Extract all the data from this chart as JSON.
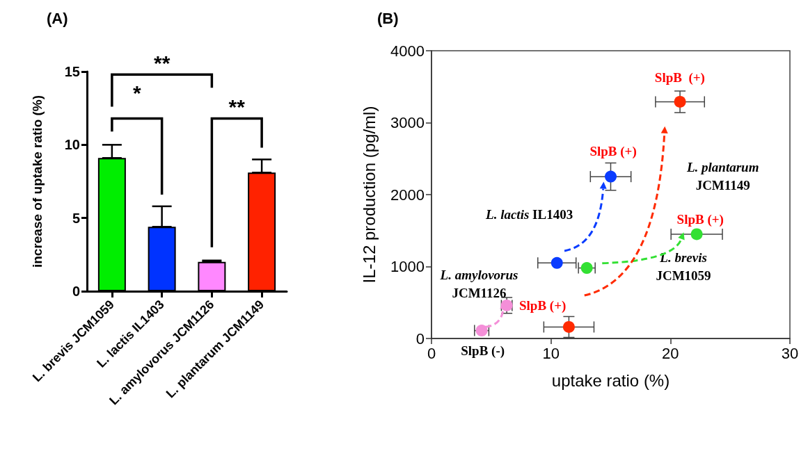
{
  "chart_data": [
    {
      "type": "bar",
      "title": "(A)",
      "ylabel": "increase of uptake ratio (%)",
      "categories": [
        "L. brevis JCM1059",
        "L. lactis IL1403",
        "L. amylovorus JCM1126",
        "L. plantarum JCM1149"
      ],
      "values": [
        9.1,
        4.4,
        2.0,
        8.1
      ],
      "colors": [
        "#00ee00",
        "#0033ff",
        "#ff88ff",
        "#ff2200"
      ],
      "errors": [
        [
          9.1,
          10.0
        ],
        [
          4.4,
          5.8
        ],
        [
          2.0,
          2.1
        ],
        [
          8.1,
          9.0
        ]
      ],
      "ylim": [
        0,
        15
      ],
      "yticks": [
        0,
        5,
        10,
        15
      ],
      "annotations": [
        "**",
        "*",
        "**"
      ]
    },
    {
      "type": "scatter",
      "title": "(B)",
      "xlabel": "uptake ratio (%)",
      "ylabel": "IL-12 production (pg/ml)",
      "marker": "circle",
      "series": [
        {
          "color": "#f48fd8",
          "x": [
            4.2,
            6.3
          ],
          "values": [
            110,
            460
          ],
          "xerrors": [
            0.6,
            0.45
          ],
          "errors": [
            null,
            110
          ]
        },
        {
          "color": "#0a3cff",
          "x": [
            10.5,
            15.0
          ],
          "values": [
            1050,
            2250
          ],
          "xerrors": [
            1.6,
            1.7
          ],
          "errors": [
            null,
            190
          ]
        },
        {
          "color": "#33e033",
          "x": [
            13.0,
            22.2
          ],
          "values": [
            980,
            1450
          ],
          "xerrors": [
            0.7,
            2.15
          ],
          "errors": [
            null,
            null
          ]
        },
        {
          "color": "#ff2a00",
          "x": [
            11.5,
            20.8
          ],
          "values": [
            160,
            3290
          ],
          "xerrors": [
            2.1,
            2.05
          ],
          "errors": [
            145,
            150
          ]
        }
      ],
      "xlim": [
        0,
        30
      ],
      "xticks": [
        0,
        10,
        20,
        30
      ],
      "ylim": [
        0,
        4000
      ],
      "yticks": [
        0,
        1000,
        2000,
        3000,
        4000
      ],
      "annotations": [
        "SlpB  (+)",
        "SlpB (+)",
        "SlpB (+)",
        "SlpB (+)",
        "SlpB (-)",
        "L. lactis IL1403",
        "L. plantarum\nJCM1149",
        "L. brevis\nJCM1059",
        "L. amylovorus\nJCM1126"
      ]
    }
  ]
}
